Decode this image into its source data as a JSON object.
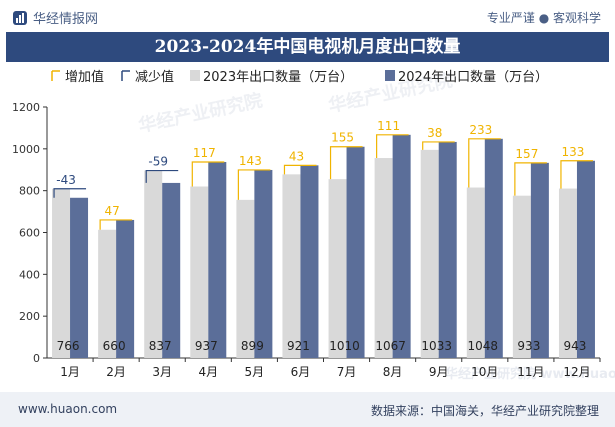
{
  "header": {
    "brand": "华经情报网",
    "tagline": "专业严谨 ● 客观科学"
  },
  "footer": {
    "website": "www.huaon.com",
    "source": "数据来源：中国海关，华经产业研究院整理"
  },
  "watermarks": [
    "华经产业研究院",
    "华经产业研究院 www.huaon.com"
  ],
  "chart_data": {
    "type": "bar",
    "title": "2023-2024年中国电视机月度出口数量",
    "categories": [
      "1月",
      "2月",
      "3月",
      "4月",
      "5月",
      "6月",
      "7月",
      "8月",
      "9月",
      "10月",
      "11月",
      "12月"
    ],
    "series": [
      {
        "name": "2023年出口数量（万台）",
        "values": [
          809,
          613,
          896,
          820,
          756,
          878,
          855,
          956,
          995,
          815,
          776,
          810
        ],
        "color": "#d9d9d9"
      },
      {
        "name": "2024年出口数量（万台）",
        "values": [
          766,
          660,
          837,
          937,
          899,
          921,
          1010,
          1067,
          1033,
          1048,
          933,
          943
        ],
        "color": "#5b6e99"
      }
    ],
    "diff": {
      "values": [
        "-43",
        "47",
        "-59",
        "117",
        "143",
        "43",
        "155",
        "111",
        "38",
        "233",
        "157",
        "133"
      ],
      "increase_name": "增加值",
      "decrease_name": "减少值",
      "increase_color": "#f0b400",
      "decrease_color": "#2e4a7e"
    },
    "yticks": [
      "0",
      "200",
      "400",
      "600",
      "800",
      "1000",
      "1200"
    ],
    "ylim": [
      0,
      1200
    ],
    "grid": false,
    "legend_position": "top"
  }
}
